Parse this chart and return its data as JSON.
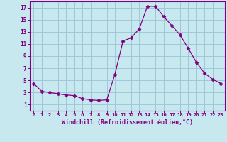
{
  "x": [
    0,
    1,
    2,
    3,
    4,
    5,
    6,
    7,
    8,
    9,
    10,
    11,
    12,
    13,
    14,
    15,
    16,
    17,
    18,
    19,
    20,
    21,
    22,
    23
  ],
  "y": [
    4.5,
    3.2,
    3.0,
    2.8,
    2.6,
    2.5,
    2.0,
    1.8,
    1.7,
    1.8,
    6.0,
    11.5,
    12.0,
    13.5,
    17.2,
    17.2,
    15.5,
    14.0,
    12.5,
    10.3,
    8.0,
    6.2,
    5.2,
    4.5
  ],
  "line_color": "#800080",
  "marker": "D",
  "marker_size": 2.5,
  "bg_color": "#c8e8f0",
  "grid_color": "#a0c8d8",
  "xlabel": "Windchill (Refroidissement éolien,°C)",
  "xlabel_color": "#800080",
  "tick_color": "#800080",
  "ylim": [
    0,
    18
  ],
  "yticks": [
    1,
    3,
    5,
    7,
    9,
    11,
    13,
    15,
    17
  ],
  "xlim": [
    -0.5,
    23.5
  ],
  "fig_bg": "#c8e8f0",
  "plot_bg": "#c8e8f0"
}
